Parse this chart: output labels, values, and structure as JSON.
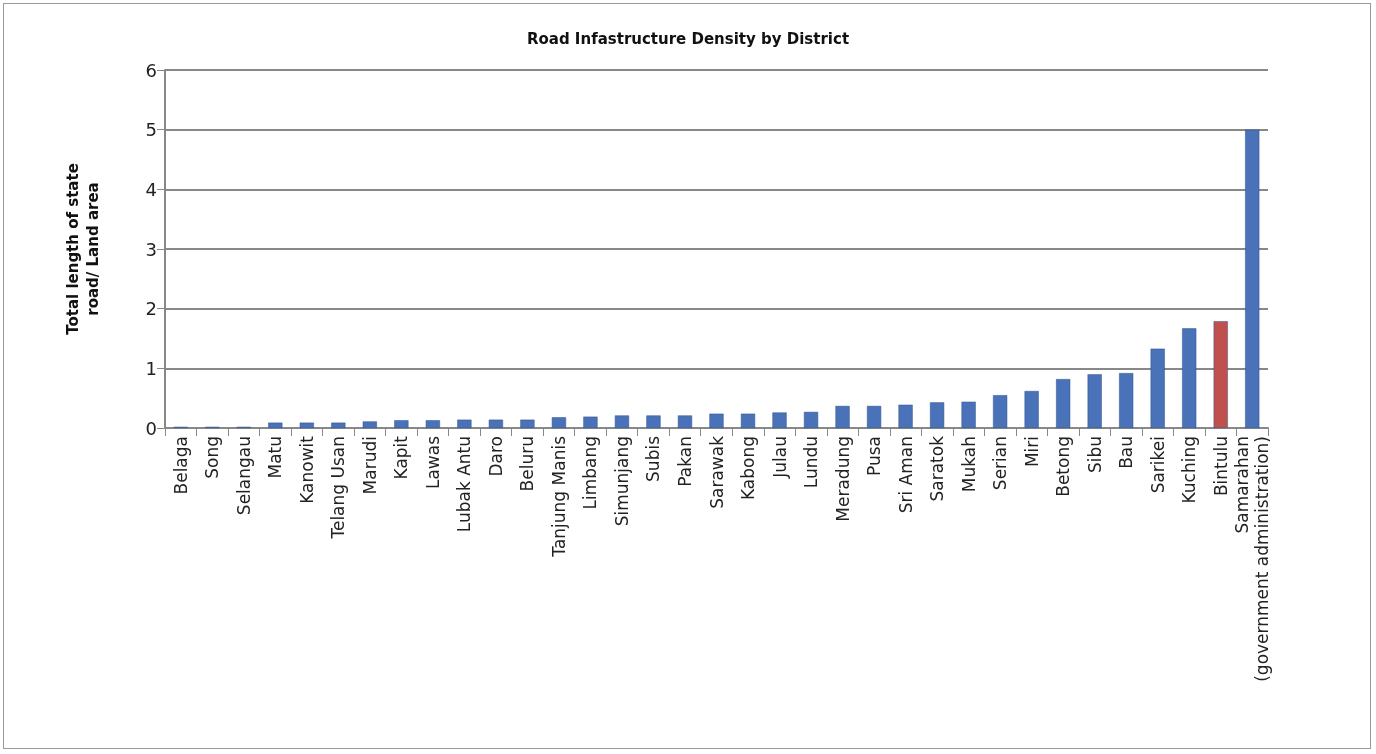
{
  "chart_data": {
    "type": "bar",
    "title": "Road Infastructure Density by District",
    "ylabel": "Total length of state\nroad/ Land area",
    "categories": [
      "Belaga",
      "Song",
      "Selangau",
      "Matu",
      "Kanowit",
      "Telang Usan",
      "Marudi",
      "Kapit",
      "Lawas",
      "Lubak Antu",
      "Daro",
      "Beluru",
      "Tanjung Manis",
      "Limbang",
      "Simunjang",
      "Subis",
      "Pakan",
      "Sarawak",
      "Kabong",
      "Julau",
      "Lundu",
      "Meradung",
      "Pusa",
      "Sri Aman",
      "Saratok",
      "Mukah",
      "Serian",
      "Miri",
      "Betong",
      "Sibu",
      "Bau",
      "Sarikei",
      "Kuching",
      "Bintulu",
      "Samarahan\n(government administration)"
    ],
    "values": [
      0.02,
      0.02,
      0.02,
      0.09,
      0.09,
      0.09,
      0.11,
      0.13,
      0.13,
      0.14,
      0.14,
      0.14,
      0.18,
      0.19,
      0.21,
      0.21,
      0.21,
      0.24,
      0.24,
      0.26,
      0.27,
      0.37,
      0.37,
      0.39,
      0.43,
      0.44,
      0.55,
      0.62,
      0.82,
      0.9,
      0.92,
      1.33,
      1.67,
      1.79,
      5.0
    ],
    "colors": [
      "#4a72b8",
      "#4a72b8",
      "#4a72b8",
      "#4a72b8",
      "#4a72b8",
      "#4a72b8",
      "#4a72b8",
      "#4a72b8",
      "#4a72b8",
      "#4a72b8",
      "#4a72b8",
      "#4a72b8",
      "#4a72b8",
      "#4a72b8",
      "#4a72b8",
      "#4a72b8",
      "#4a72b8",
      "#4a72b8",
      "#4a72b8",
      "#4a72b8",
      "#4a72b8",
      "#4a72b8",
      "#4a72b8",
      "#4a72b8",
      "#4a72b8",
      "#4a72b8",
      "#4a72b8",
      "#4a72b8",
      "#4a72b8",
      "#4a72b8",
      "#4a72b8",
      "#4a72b8",
      "#4a72b8",
      "#c0504d",
      "#4a72b8"
    ],
    "ylim": [
      0,
      6
    ],
    "yticks": [
      0,
      1,
      2,
      3,
      4,
      5,
      6
    ],
    "grid": "y"
  }
}
